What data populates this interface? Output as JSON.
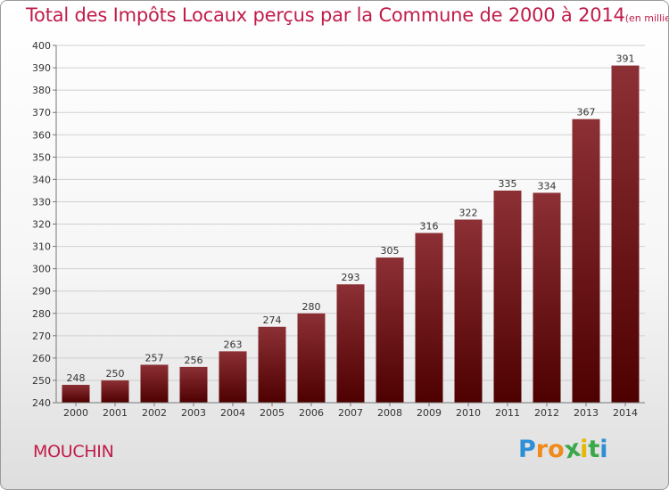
{
  "title": "Total des Impôts Locaux perçus par la Commune de 2000 à 2014",
  "title_unit": "(en milliers d'€)",
  "commune": "MOUCHIN",
  "logo": {
    "letters": [
      "P",
      "r",
      "o",
      "x",
      "i",
      "t",
      "i"
    ],
    "colors": [
      "#2f8fd6",
      "#f08a1c",
      "#f08a1c",
      "#3aa84a",
      "#e5b800",
      "#3aa84a",
      "#2f8fd6"
    ]
  },
  "colors": {
    "bar_top": "#8c3035",
    "bar_bottom": "#4e0000",
    "title": "#c01c4a"
  },
  "chart_data": {
    "type": "bar",
    "categories": [
      "2000",
      "2001",
      "2002",
      "2003",
      "2004",
      "2005",
      "2006",
      "2007",
      "2008",
      "2009",
      "2010",
      "2011",
      "2012",
      "2013",
      "2014"
    ],
    "values": [
      248,
      250,
      257,
      256,
      263,
      274,
      280,
      293,
      305,
      316,
      322,
      335,
      334,
      367,
      391
    ],
    "data_labels": [
      "248",
      "250",
      "257",
      "256",
      "263",
      "274",
      "280",
      "293",
      "305",
      "316",
      "322",
      "335",
      "334",
      "367",
      "391"
    ],
    "y_ticks": [
      "240",
      "250",
      "260",
      "270",
      "280",
      "290",
      "300",
      "310",
      "320",
      "330",
      "340",
      "350",
      "360",
      "370",
      "380",
      "390",
      "400"
    ],
    "ylim": [
      240,
      400
    ],
    "grid": true
  }
}
